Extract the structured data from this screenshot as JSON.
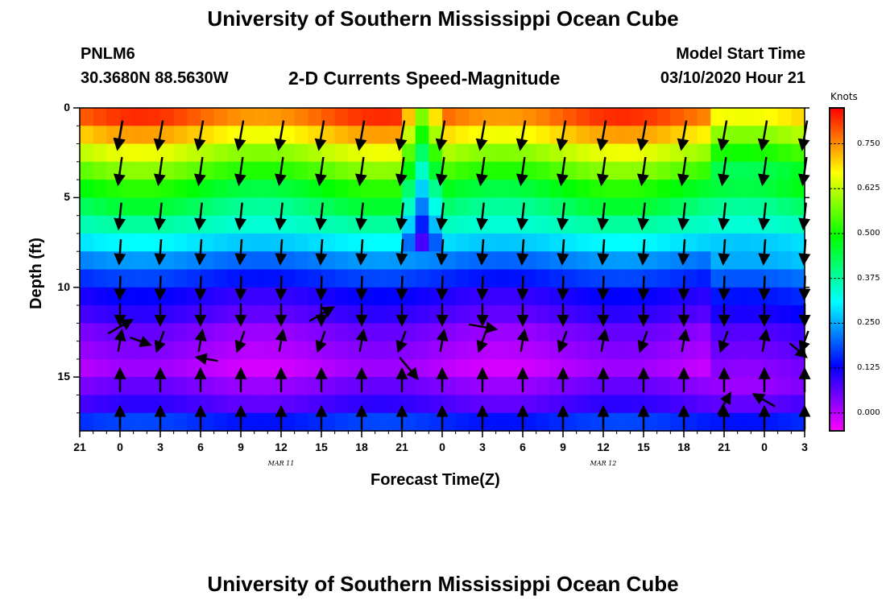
{
  "header": {
    "title": "University of Southern Mississippi Ocean Cube",
    "station_id": "PNLM6",
    "coordinates": "30.3680N 88.5630W",
    "model_start_label": "Model Start Time",
    "model_start_value": "03/10/2020 Hour 21",
    "footer_title": "University of Southern Mississippi Ocean Cube"
  },
  "chart_data": {
    "type": "heatmap",
    "title": "2-D Currents Speed-Magnitude",
    "xlabel": "Forecast Time(Z)",
    "ylabel": "Depth (ft)",
    "x_ticks": [
      "21",
      "0",
      "3",
      "6",
      "9",
      "12",
      "15",
      "18",
      "21",
      "0",
      "3",
      "6",
      "9",
      "12",
      "15",
      "18",
      "21",
      "0",
      "3"
    ],
    "x_hours": [
      0,
      3,
      6,
      9,
      12,
      15,
      18,
      21,
      24,
      27,
      30,
      33,
      36,
      39,
      42,
      45,
      48,
      51,
      54
    ],
    "date_labels": [
      {
        "text": "MAR  11",
        "hour": 15
      },
      {
        "text": "MAR  12",
        "hour": 39
      }
    ],
    "y_ticks": [
      0,
      5,
      10,
      15
    ],
    "ylim": [
      0,
      18
    ],
    "colorbar": {
      "units": "Knots",
      "ticks": [
        "0.750",
        "0.625",
        "0.500",
        "0.375",
        "0.250",
        "0.125",
        "0.000"
      ],
      "tick_values": [
        0.75,
        0.625,
        0.5,
        0.375,
        0.25,
        0.125,
        0.0
      ],
      "range": [
        -0.05,
        0.85
      ]
    },
    "depth_profile_ft": [
      0.5,
      1.5,
      2.5,
      3.5,
      4.5,
      5.5,
      6.5,
      7.5,
      8.5,
      9.5,
      10.5,
      11.5,
      12.5,
      13.5,
      14.5,
      15.5,
      16.5,
      17.5
    ],
    "speed_profile_kn": [
      0.78,
      0.7,
      0.62,
      0.55,
      0.48,
      0.42,
      0.36,
      0.29,
      0.22,
      0.16,
      0.11,
      0.08,
      0.04,
      0.02,
      0.0,
      0.04,
      0.08,
      0.16
    ],
    "vectors": [
      {
        "hour": 3,
        "depth": 1.5,
        "dir": 190,
        "len": 0.9
      },
      {
        "hour": 3,
        "depth": 12.2,
        "dir": 60,
        "len": 0.9
      },
      {
        "hour": 4.5,
        "depth": 13,
        "dir": 110,
        "len": 0.7
      },
      {
        "hour": 9.5,
        "depth": 14,
        "dir": 280,
        "len": 0.7
      },
      {
        "hour": 18,
        "depth": 11.5,
        "dir": 60,
        "len": 0.9
      },
      {
        "hour": 24.5,
        "depth": 14.5,
        "dir": 140,
        "len": 0.9
      },
      {
        "hour": 30,
        "depth": 12.2,
        "dir": 100,
        "len": 0.9
      },
      {
        "hour": 48,
        "depth": 16.5,
        "dir": 30,
        "len": 0.8
      },
      {
        "hour": 51,
        "depth": 16.3,
        "dir": 300,
        "len": 0.8
      },
      {
        "hour": 53.5,
        "depth": 13.5,
        "dir": 130,
        "len": 0.7
      }
    ]
  }
}
